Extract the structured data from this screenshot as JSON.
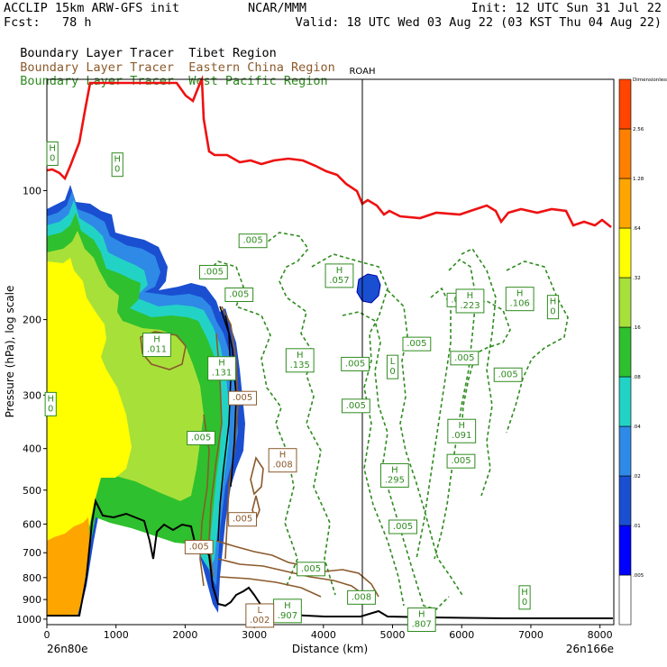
{
  "header": {
    "left_line1": "ACCLIP 15km ARW-GFS init",
    "center_line1": "NCAR/MMM",
    "right_line1": "Init: 12 UTC Sun 31 Jul 22",
    "left_line2": "Fcst:   78 h",
    "right_line2": "Valid: 18 UTC Wed 03 Aug 22 (03 KST Thu 04 Aug 22)"
  },
  "tracers": [
    {
      "name": "Boundary Layer Tracer",
      "region": "Tibet Region",
      "color": "#000000"
    },
    {
      "name": "Boundary Layer Tracer",
      "region": "Eastern China Region",
      "color": "#8b5a2b"
    },
    {
      "name": "Boundary Layer Tracer",
      "region": "West Pacific Region",
      "color": "#2e8b1e"
    }
  ],
  "station": "ROAH",
  "chart_data": {
    "type": "heatmap",
    "xlabel": "Distance (km)",
    "ylabel": "Pressure (hPa), log scale",
    "x_ticks": [
      "0",
      "1000",
      "2000",
      "3000",
      "4000",
      "5000",
      "6000",
      "7000",
      "8000"
    ],
    "y_ticks": [
      "100",
      "200",
      "300",
      "400",
      "500",
      "600",
      "700",
      "800",
      "900",
      "1000"
    ],
    "x_start_label": "26n80e",
    "x_end_label": "26n166e",
    "xlim": [
      0,
      8200
    ],
    "ylim": [
      1030,
      55
    ],
    "y_scale": "log",
    "station_x": 4570,
    "colorbar": {
      "levels": [
        "",
        ".005",
        ".01",
        ".02",
        ".04",
        ".08",
        ".16",
        ".32",
        ".64",
        "1.28",
        "2.56",
        "Dimensionless"
      ],
      "colors": [
        "#ffffff",
        "#0000ff",
        "#1a4fd1",
        "#2e8ae6",
        "#22d3c5",
        "#2ec02e",
        "#a8e03a",
        "#ffff00",
        "#ffa500",
        "#ff7f00",
        "#ff4500"
      ]
    },
    "tropopause_color": "#ee1111",
    "terrain_color": "#000000",
    "annotations": [
      {
        "text": "H\n0",
        "x": 80,
        "p": 82,
        "color": "#2e8b1e"
      },
      {
        "text": "H\n0",
        "x": 1020,
        "p": 87,
        "color": "#2e8b1e"
      },
      {
        "text": ".005",
        "x": 2980,
        "p": 131,
        "color": "#2e8b1e"
      },
      {
        "text": ".005",
        "x": 2410,
        "p": 155,
        "color": "#2e8b1e"
      },
      {
        "text": ".005",
        "x": 2780,
        "p": 175,
        "color": "#2e8b1e"
      },
      {
        "text": "H\n.057",
        "x": 4230,
        "p": 158,
        "color": "#2e8b1e"
      },
      {
        "text": ".001",
        "x": 5990,
        "p": 180,
        "color": "#2e8b1e"
      },
      {
        "text": "H\n.223",
        "x": 6120,
        "p": 181,
        "color": "#2e8b1e"
      },
      {
        "text": "H\n.106",
        "x": 6840,
        "p": 179,
        "color": "#2e8b1e"
      },
      {
        "text": "H\n0",
        "x": 7320,
        "p": 187,
        "color": "#2e8b1e"
      },
      {
        "text": "H\n.011",
        "x": 1590,
        "p": 229,
        "color": "#2e8b1e"
      },
      {
        "text": ".005",
        "x": 5350,
        "p": 228,
        "color": "#2e8b1e"
      },
      {
        "text": ".005",
        "x": 6040,
        "p": 246,
        "color": "#2e8b1e"
      },
      {
        "text": "H\n.135",
        "x": 3660,
        "p": 249,
        "color": "#2e8b1e"
      },
      {
        "text": ".005",
        "x": 4460,
        "p": 254,
        "color": "#2e8b1e"
      },
      {
        "text": "L\n0",
        "x": 5000,
        "p": 258,
        "color": "#2e8b1e"
      },
      {
        "text": ".005",
        "x": 6670,
        "p": 269,
        "color": "#2e8b1e"
      },
      {
        "text": "H\n.131",
        "x": 2530,
        "p": 260,
        "color": "#2e8b1e"
      },
      {
        "text": ".005",
        "x": 2830,
        "p": 305,
        "color": "#8b5a2b"
      },
      {
        "text": ".005",
        "x": 4470,
        "p": 318,
        "color": "#2e8b1e"
      },
      {
        "text": "H\n0",
        "x": 55,
        "p": 315,
        "color": "#2e8b1e"
      },
      {
        "text": "H\n.091",
        "x": 6000,
        "p": 364,
        "color": "#2e8b1e"
      },
      {
        "text": ".005",
        "x": 2230,
        "p": 378,
        "color": "#2e8b1e"
      },
      {
        "text": "H\n.008",
        "x": 3410,
        "p": 426,
        "color": "#8b5a2b"
      },
      {
        "text": ".005",
        "x": 5990,
        "p": 428,
        "color": "#2e8b1e"
      },
      {
        "text": "H\n.295",
        "x": 5030,
        "p": 462,
        "color": "#2e8b1e"
      },
      {
        "text": ".005",
        "x": 2830,
        "p": 585,
        "color": "#8b5a2b"
      },
      {
        "text": ".005",
        "x": 5150,
        "p": 609,
        "color": "#2e8b1e"
      },
      {
        "text": ".005",
        "x": 2200,
        "p": 679,
        "color": "#8b5a2b"
      },
      {
        "text": ".005",
        "x": 3820,
        "p": 764,
        "color": "#2e8b1e"
      },
      {
        "text": ".008",
        "x": 4550,
        "p": 890,
        "color": "#2e8b1e"
      },
      {
        "text": "H\n0",
        "x": 6910,
        "p": 890,
        "color": "#2e8b1e"
      },
      {
        "text": "H\n.907",
        "x": 3480,
        "p": 957,
        "color": "#2e8b1e"
      },
      {
        "text": "L\n.002",
        "x": 3080,
        "p": 981,
        "color": "#8b5a2b"
      },
      {
        "text": "H\n.807",
        "x": 5420,
        "p": 1003,
        "color": "#2e8b1e"
      }
    ]
  }
}
